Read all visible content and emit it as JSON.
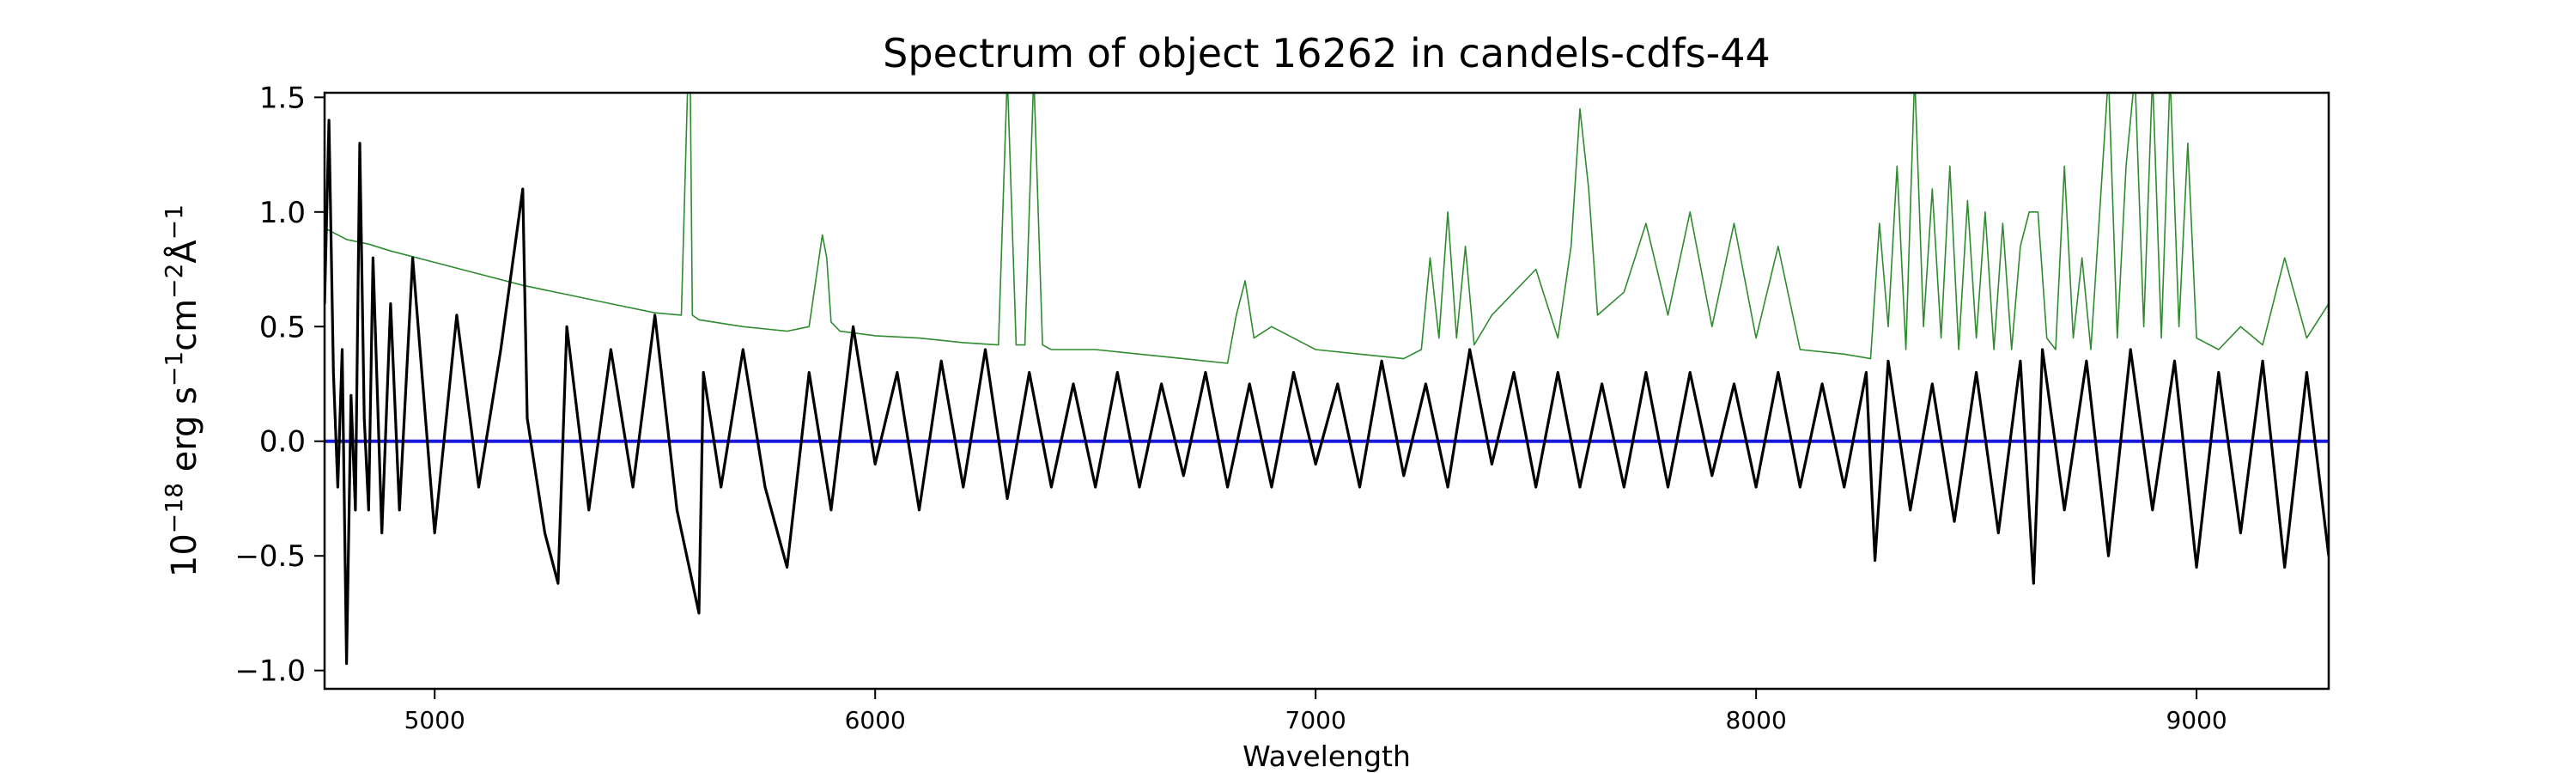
{
  "chart_data": {
    "type": "line",
    "title": "Spectrum of object 16262 in candels-cdfs-44",
    "xlabel": "Wavelength",
    "ylabel_parts": {
      "base": "10",
      "exp1": "−18",
      "t1": " erg s",
      "exp2": "−1",
      "t2": "cm",
      "exp3": "−2",
      "t3": "Å",
      "exp4": "−1"
    },
    "xlim": [
      4750,
      9300
    ],
    "ylim": [
      -1.08,
      1.52
    ],
    "x_ticks": [
      5000,
      6000,
      7000,
      8000,
      9000
    ],
    "x_tick_labels": [
      "5000",
      "6000",
      "7000",
      "8000",
      "9000"
    ],
    "y_ticks": [
      -1.0,
      -0.5,
      0.0,
      0.5,
      1.0,
      1.5
    ],
    "y_tick_labels": [
      "−1.0",
      "−0.5",
      "0.0",
      "0.5",
      "1.0",
      "1.5"
    ],
    "grid": false,
    "series": [
      {
        "role": "model",
        "color": "#2e8b2e",
        "x": [
          4750,
          4800,
          4850,
          4900,
          5000,
          5100,
          5200,
          5300,
          5400,
          5500,
          5560,
          5575,
          5580,
          5585,
          5600,
          5700,
          5800,
          5850,
          5880,
          5890,
          5900,
          5920,
          6000,
          6100,
          6200,
          6280,
          6300,
          6320,
          6340,
          6360,
          6380,
          6400,
          6500,
          6600,
          6700,
          6800,
          6820,
          6840,
          6860,
          6900,
          7000,
          7100,
          7200,
          7240,
          7260,
          7280,
          7300,
          7320,
          7340,
          7360,
          7400,
          7500,
          7550,
          7580,
          7600,
          7620,
          7640,
          7700,
          7750,
          7800,
          7850,
          7900,
          7950,
          8000,
          8050,
          8100,
          8200,
          8260,
          8280,
          8300,
          8320,
          8340,
          8360,
          8380,
          8400,
          8420,
          8440,
          8460,
          8480,
          8500,
          8520,
          8540,
          8560,
          8580,
          8600,
          8620,
          8640,
          8660,
          8680,
          8700,
          8720,
          8740,
          8760,
          8780,
          8800,
          8820,
          8840,
          8860,
          8880,
          8900,
          8920,
          8940,
          8960,
          8980,
          9000,
          9050,
          9100,
          9150,
          9200,
          9250,
          9300
        ],
        "y": [
          0.93,
          0.88,
          0.86,
          0.83,
          0.78,
          0.73,
          0.68,
          0.64,
          0.6,
          0.56,
          0.55,
          1.6,
          1.6,
          0.55,
          0.53,
          0.5,
          0.48,
          0.5,
          0.9,
          0.8,
          0.52,
          0.48,
          0.46,
          0.45,
          0.43,
          0.42,
          1.6,
          0.42,
          0.42,
          1.6,
          0.42,
          0.4,
          0.4,
          0.38,
          0.36,
          0.34,
          0.55,
          0.7,
          0.45,
          0.5,
          0.4,
          0.38,
          0.36,
          0.4,
          0.8,
          0.45,
          1.0,
          0.45,
          0.85,
          0.42,
          0.55,
          0.75,
          0.45,
          0.85,
          1.45,
          1.1,
          0.55,
          0.65,
          0.95,
          0.55,
          1.0,
          0.5,
          0.95,
          0.45,
          0.85,
          0.4,
          0.38,
          0.36,
          0.95,
          0.5,
          1.2,
          0.4,
          1.6,
          0.5,
          1.1,
          0.45,
          1.2,
          0.4,
          1.05,
          0.45,
          1.0,
          0.4,
          0.95,
          0.4,
          0.85,
          1.0,
          1.0,
          0.45,
          0.4,
          1.2,
          0.45,
          0.8,
          0.4,
          1.0,
          1.6,
          0.45,
          1.2,
          1.6,
          0.5,
          1.6,
          0.45,
          1.6,
          0.5,
          1.3,
          0.45,
          0.4,
          0.5,
          0.42,
          0.8,
          0.45,
          0.6
        ]
      },
      {
        "role": "error",
        "color": "#1a1adf",
        "x": [
          4750,
          9300
        ],
        "y": [
          0.0,
          0.0
        ]
      },
      {
        "role": "flux",
        "color": "#000000",
        "x": [
          4750,
          4760,
          4770,
          4780,
          4790,
          4800,
          4810,
          4820,
          4830,
          4840,
          4850,
          4860,
          4880,
          4900,
          4920,
          4950,
          5000,
          5050,
          5100,
          5150,
          5200,
          5210,
          5250,
          5280,
          5300,
          5350,
          5400,
          5450,
          5500,
          5550,
          5600,
          5610,
          5650,
          5700,
          5750,
          5800,
          5850,
          5900,
          5950,
          6000,
          6050,
          6100,
          6150,
          6200,
          6250,
          6300,
          6350,
          6400,
          6450,
          6500,
          6550,
          6600,
          6650,
          6700,
          6750,
          6800,
          6850,
          6900,
          6950,
          7000,
          7050,
          7100,
          7150,
          7200,
          7250,
          7300,
          7350,
          7400,
          7450,
          7500,
          7550,
          7600,
          7650,
          7700,
          7750,
          7800,
          7850,
          7900,
          7950,
          8000,
          8050,
          8100,
          8150,
          8200,
          8250,
          8270,
          8300,
          8350,
          8400,
          8450,
          8500,
          8550,
          8600,
          8630,
          8650,
          8700,
          8750,
          8800,
          8850,
          8900,
          8950,
          9000,
          9050,
          9100,
          9150,
          9200,
          9250,
          9300
        ],
        "y": [
          0.6,
          1.4,
          0.3,
          -0.2,
          0.4,
          -0.97,
          0.2,
          -0.3,
          1.3,
          0.1,
          -0.3,
          0.8,
          -0.4,
          0.6,
          -0.3,
          0.8,
          -0.4,
          0.55,
          -0.2,
          0.4,
          1.1,
          0.1,
          -0.4,
          -0.62,
          0.5,
          -0.3,
          0.4,
          -0.2,
          0.55,
          -0.3,
          -0.75,
          0.3,
          -0.2,
          0.4,
          -0.2,
          -0.55,
          0.3,
          -0.3,
          0.5,
          -0.1,
          0.3,
          -0.3,
          0.35,
          -0.2,
          0.4,
          -0.25,
          0.3,
          -0.2,
          0.25,
          -0.2,
          0.3,
          -0.2,
          0.25,
          -0.15,
          0.3,
          -0.2,
          0.25,
          -0.2,
          0.3,
          -0.1,
          0.25,
          -0.2,
          0.35,
          -0.15,
          0.25,
          -0.2,
          0.4,
          -0.1,
          0.3,
          -0.2,
          0.3,
          -0.2,
          0.25,
          -0.2,
          0.3,
          -0.2,
          0.3,
          -0.15,
          0.25,
          -0.2,
          0.3,
          -0.2,
          0.25,
          -0.2,
          0.3,
          -0.52,
          0.35,
          -0.3,
          0.25,
          -0.35,
          0.3,
          -0.4,
          0.35,
          -0.62,
          0.4,
          -0.3,
          0.35,
          -0.5,
          0.4,
          -0.3,
          0.35,
          -0.55,
          0.3,
          -0.4,
          0.35,
          -0.55,
          0.3,
          -0.5
        ]
      }
    ]
  }
}
